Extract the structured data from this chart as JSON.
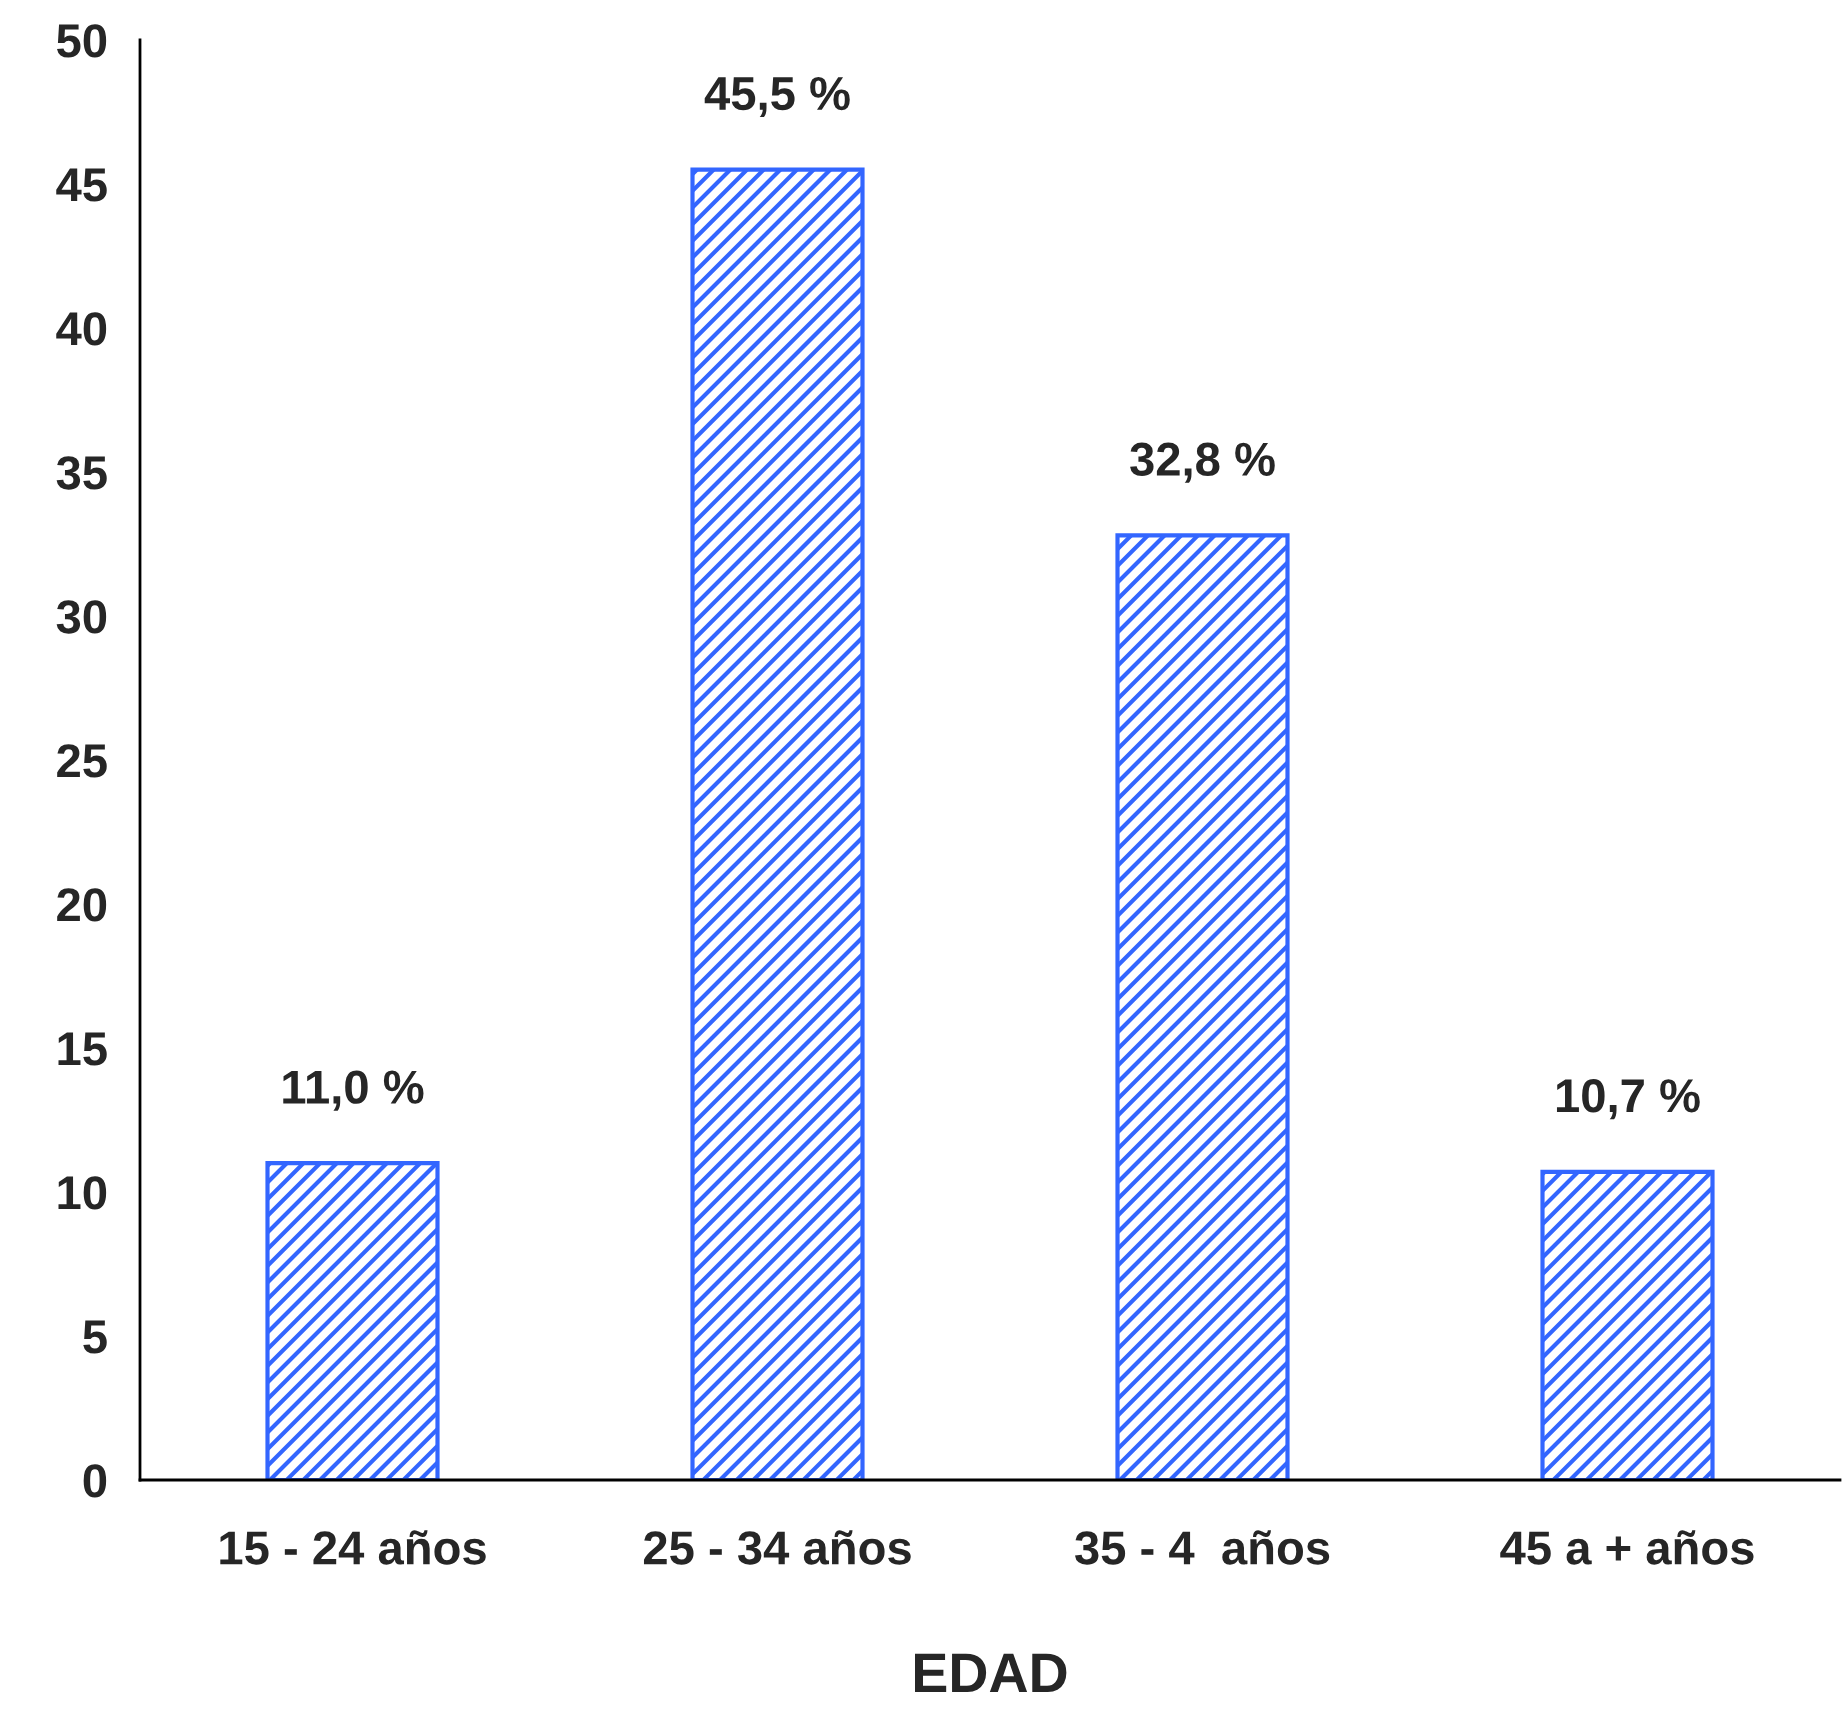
{
  "chart_data": {
    "type": "bar",
    "xlabel": "EDAD",
    "categories": [
      "15 - 24 años",
      "25 - 34 años",
      "35 - 4  años",
      "45 a + años"
    ],
    "values": [
      11.0,
      45.5,
      32.8,
      10.7
    ],
    "value_labels": [
      "11,0 %",
      "45,5 %",
      "32,8 %",
      "10,7 %"
    ],
    "color": "#3366ff",
    "ylim": [
      0,
      50
    ],
    "yticks": [
      0,
      5,
      10,
      15,
      20,
      25,
      30,
      35,
      40,
      45,
      50
    ],
    "grid": false,
    "legend": false
  }
}
